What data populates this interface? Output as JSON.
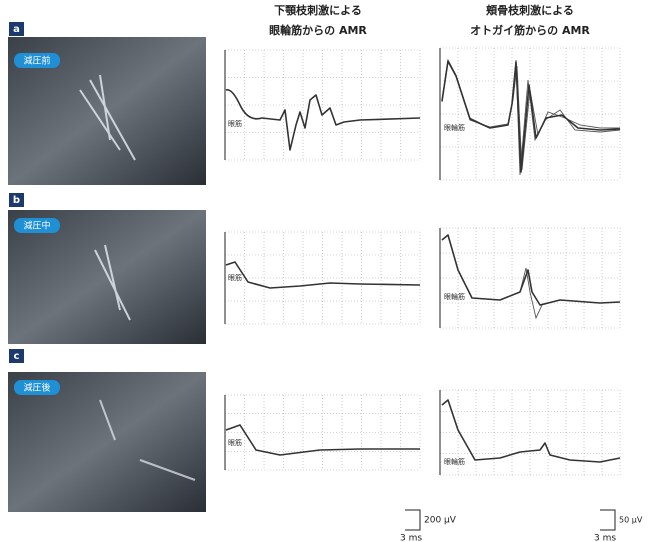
{
  "header": {
    "left_line1": "下顎枝刺激による",
    "left_line2": "眼輪筋からの AMR",
    "right_line1": "頬骨枝刺激による",
    "right_line2": "オトガイ筋からの AMR"
  },
  "rows": [
    {
      "label": "a",
      "badge": "減圧前",
      "left_trace_label": "眼筋",
      "right_trace_label": "眼輪筋"
    },
    {
      "label": "b",
      "badge": "減圧中",
      "left_trace_label": "眼筋",
      "right_trace_label": "眼輪筋"
    },
    {
      "label": "c",
      "badge": "減圧後",
      "left_trace_label": "眼筋",
      "right_trace_label": "眼輪筋"
    }
  ],
  "scale_bars": {
    "left_amplitude": "200 μV",
    "left_time": "3 ms",
    "right_amplitude": "50 μV",
    "right_time": "3 ms"
  }
}
